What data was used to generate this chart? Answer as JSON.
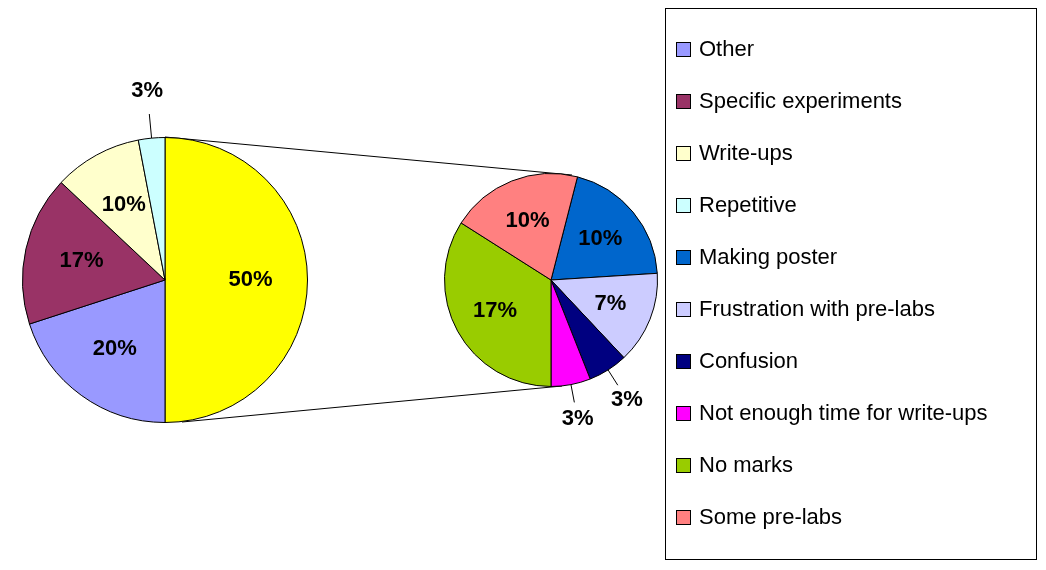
{
  "chart_data": [
    {
      "type": "pie",
      "categories": [
        null,
        "Other",
        "Specific experiments",
        "Write-ups",
        "Repetitive"
      ],
      "values": [
        50,
        20,
        17,
        10,
        3
      ],
      "colors": [
        "#ffff00",
        "#9999ff",
        "#993366",
        "#ffffcc",
        "#ccffff"
      ],
      "value_labels": [
        "50%",
        "20%",
        "17%",
        "10%",
        "3%"
      ],
      "legend": "right"
    },
    {
      "type": "pie",
      "categories": [
        "Making poster",
        "Frustration with pre-labs",
        "Confusion",
        "Not enough time for write-ups",
        "No marks",
        "Some pre-labs"
      ],
      "values": [
        10,
        7,
        3,
        3,
        17,
        10
      ],
      "colors": [
        "#0066cc",
        "#ccccff",
        "#000080",
        "#ff00ff",
        "#99cc00",
        "#ff8080"
      ],
      "value_labels": [
        "10%",
        "7%",
        "3%",
        "3%",
        "17%",
        "10%"
      ],
      "legend": "right"
    }
  ]
}
